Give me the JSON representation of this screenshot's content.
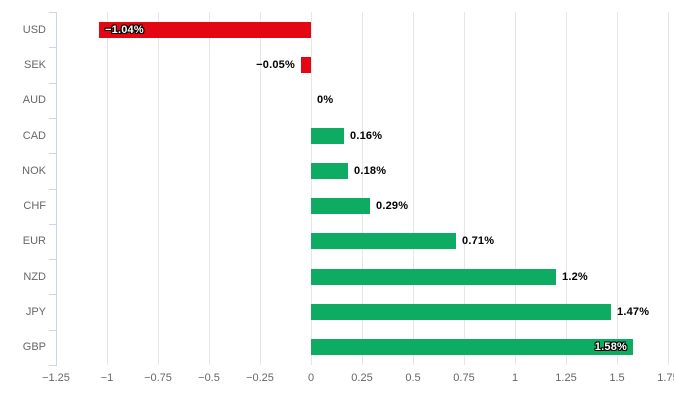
{
  "chart_data": {
    "type": "bar",
    "title": "",
    "xlabel": "",
    "ylabel": "",
    "legend": "none",
    "grid": true,
    "categories": [
      "USD",
      "SEK",
      "AUD",
      "CAD",
      "NOK",
      "CHF",
      "EUR",
      "NZD",
      "JPY",
      "GBP"
    ],
    "values": [
      -1.04,
      -0.05,
      0,
      0.16,
      0.18,
      0.29,
      0.71,
      1.2,
      1.47,
      1.58
    ],
    "value_labels": [
      "−1.04%",
      "−0.05%",
      "0%",
      "0.16%",
      "0.18%",
      "0.29%",
      "0.71%",
      "1.2%",
      "1.47%",
      "1.58%"
    ],
    "label_inside_bar": [
      true,
      false,
      false,
      false,
      false,
      false,
      false,
      false,
      false,
      true
    ],
    "xlim": [
      -1.25,
      1.75
    ],
    "x_tick_values": [
      -1.25,
      -1,
      -0.75,
      -0.5,
      -0.25,
      0,
      0.25,
      0.5,
      0.75,
      1,
      1.25,
      1.5,
      1.75
    ],
    "x_tick_labels": [
      "−1.25",
      "−1",
      "−0.75",
      "−0.5",
      "−0.25",
      "0",
      "0.25",
      "0.5",
      "0.75",
      "1",
      "1.25",
      "1.5",
      "1.75"
    ],
    "colors": {
      "negative_bar": "#e30613",
      "positive_bar": "#0dac62",
      "gridline": "#e6e6e6",
      "axis_line": "#ccd6eb",
      "axis_label_text": "#666666",
      "data_label_text": "#000000",
      "data_label_inside_text": "#ffffff",
      "background": "#ffffff"
    }
  }
}
